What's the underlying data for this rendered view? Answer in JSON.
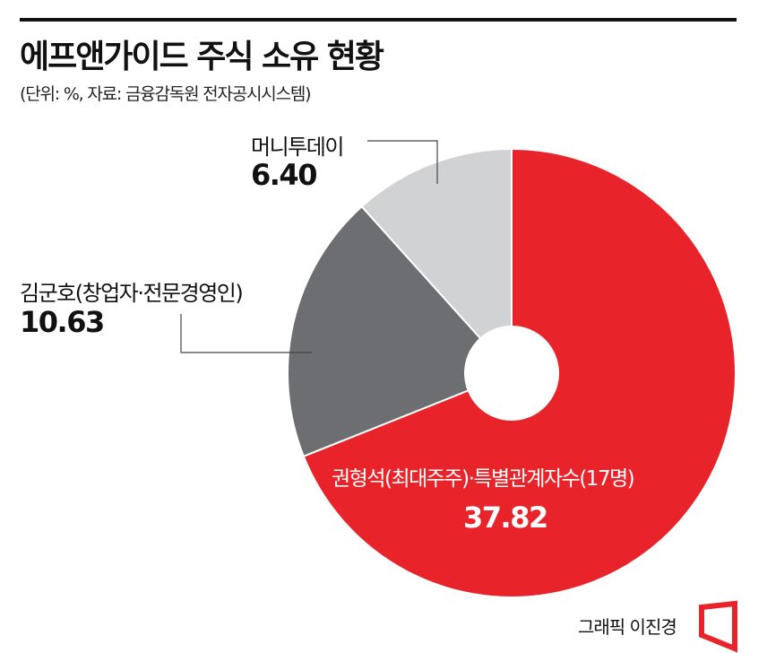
{
  "title": "에프앤가이드 주식 소유 현황",
  "subtitle": "(단위: %, 자료: 금융감독원 전자공시시스템)",
  "credit": "그래픽 이진경",
  "chart_data": {
    "type": "pie",
    "title": "에프앤가이드 주식 소유 현황",
    "unit": "%",
    "slices": [
      {
        "label": "권형석(최대주주)·특별관계자수(17명)",
        "value": 37.82,
        "value_text": "37.82",
        "color": "#e8232a"
      },
      {
        "label": "김군호(창업자·전문경영인)",
        "value": 10.63,
        "value_text": "10.63",
        "color": "#6d6e71"
      },
      {
        "label": "머니투데이",
        "value": 6.4,
        "value_text": "6.40",
        "color": "#d1d2d4"
      }
    ]
  }
}
